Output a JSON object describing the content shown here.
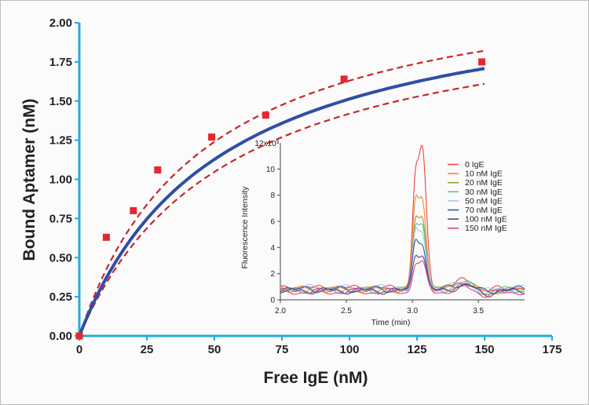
{
  "chart_data": [
    {
      "type": "scatter",
      "xlabel": "Free IgE (nM)",
      "ylabel": "Bound Aptamer (nM)",
      "xlim": [
        0,
        175
      ],
      "ylim": [
        0,
        2.0
      ],
      "x_ticks": [
        "0",
        "25",
        "50",
        "75",
        "100",
        "125",
        "150",
        "175"
      ],
      "y_ticks": [
        "0.00",
        "0.25",
        "0.50",
        "0.75",
        "1.00",
        "1.25",
        "1.50",
        "1.75",
        "2.00"
      ],
      "grid": false,
      "colors": {
        "axis": "#27a9e1",
        "points": "#e8262c",
        "fit": "#2e4fa5",
        "band": "#c8272d"
      },
      "series": [
        {
          "kind": "points",
          "x": [
            0,
            10,
            20,
            29,
            49,
            69,
            98,
            149
          ],
          "y": [
            0.0,
            0.63,
            0.8,
            1.06,
            1.27,
            1.41,
            1.64,
            1.75
          ]
        },
        {
          "kind": "fit",
          "bmax": 2.3,
          "kd": 52,
          "x_range": [
            0,
            150
          ]
        },
        {
          "kind": "confidence-upper",
          "bmax": 2.38,
          "kd": 46,
          "x_range": [
            0,
            150
          ]
        },
        {
          "kind": "confidence-lower",
          "bmax": 2.2,
          "kd": 55,
          "x_range": [
            0,
            150
          ]
        }
      ]
    },
    {
      "type": "line",
      "xlabel": "Time (min)",
      "ylabel": "Fluorescence Intensity",
      "y_unit_label": "12x10³",
      "xlim": [
        2.0,
        3.85
      ],
      "ylim": [
        0,
        12
      ],
      "x_ticks": [
        "2.0",
        "2.5",
        "3.0",
        "3.5"
      ],
      "y_ticks": [
        "0",
        "2",
        "4",
        "6",
        "8",
        "10"
      ],
      "legend_position": "right",
      "series": [
        {
          "name": "0 IgE",
          "color": "#f0433f",
          "peak_main": 11.3,
          "peak_side": 8.0,
          "tail": 0.9
        },
        {
          "name": "10 nM IgE",
          "color": "#f58a2c",
          "peak_main": 7.5,
          "peak_side": 6.5,
          "tail": 0.8
        },
        {
          "name": "20 nM IgE",
          "color": "#9a9a2a",
          "peak_main": 6.2,
          "peak_side": 5.3,
          "tail": 0.7
        },
        {
          "name": "30 nM IgE",
          "color": "#5fbf9a",
          "peak_main": 5.5,
          "peak_side": 4.6,
          "tail": 0.8
        },
        {
          "name": "50 nM IgE",
          "color": "#a9c6e8",
          "peak_main": 4.9,
          "peak_side": 4.0,
          "tail": 0.9
        },
        {
          "name": "70 nM IgE",
          "color": "#2f5aa8",
          "peak_main": 4.3,
          "peak_side": 3.4,
          "tail": 0.8
        },
        {
          "name": "100 nM IgE",
          "color": "#5a3f9a",
          "peak_main": 3.4,
          "peak_side": 2.7,
          "tail": 0.7
        },
        {
          "name": "150 nM IgE",
          "color": "#e3448f",
          "peak_main": 2.7,
          "peak_side": 2.1,
          "tail": 0.6
        }
      ]
    }
  ]
}
